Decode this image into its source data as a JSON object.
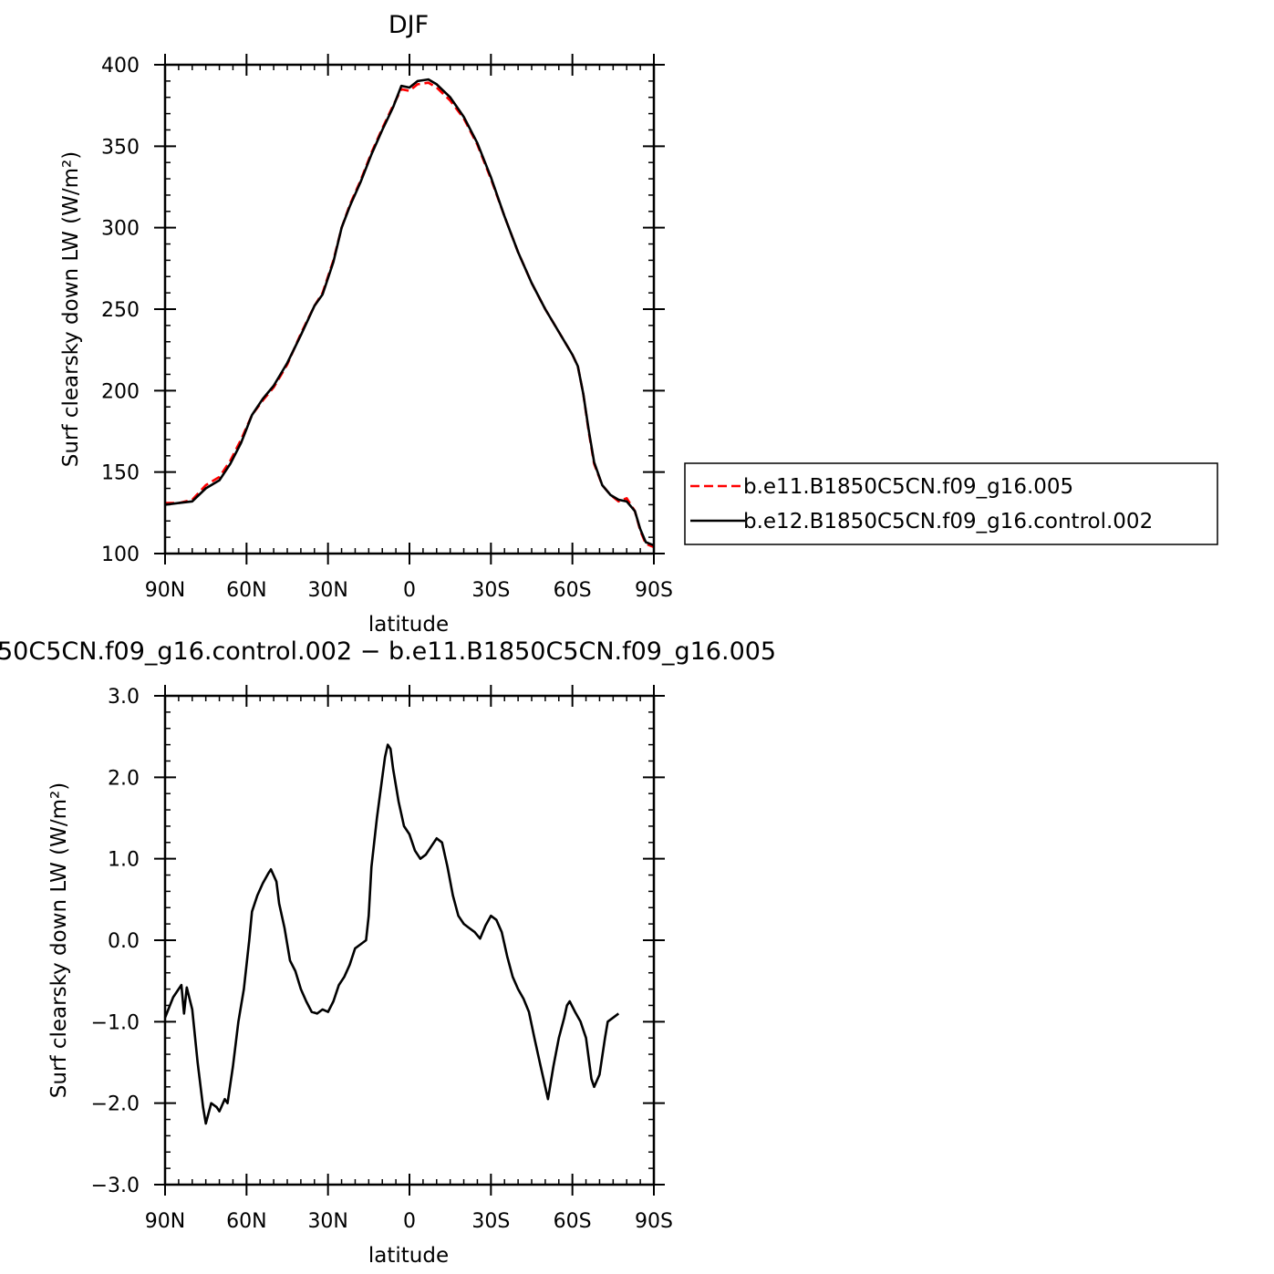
{
  "chart_data": [
    {
      "type": "line",
      "title": "DJF",
      "xlabel": "latitude",
      "ylabel": "Surf clearsky down LW (W/m²)",
      "xlim": [
        -90,
        90
      ],
      "ylim": [
        100,
        400
      ],
      "xticks": [
        {
          "value": -90,
          "label": "90N"
        },
        {
          "value": -60,
          "label": "60N"
        },
        {
          "value": -30,
          "label": "30N"
        },
        {
          "value": 0,
          "label": "0"
        },
        {
          "value": 30,
          "label": "30S"
        },
        {
          "value": 60,
          "label": "60S"
        },
        {
          "value": 90,
          "label": "90S"
        }
      ],
      "yticks": [
        {
          "value": 100,
          "label": "100"
        },
        {
          "value": 150,
          "label": "150"
        },
        {
          "value": 200,
          "label": "200"
        },
        {
          "value": 250,
          "label": "250"
        },
        {
          "value": 300,
          "label": "300"
        },
        {
          "value": 350,
          "label": "350"
        },
        {
          "value": 400,
          "label": "400"
        }
      ],
      "legend_position": "right",
      "series": [
        {
          "name": "b.e11.B1850C5CN.f09_g16.005",
          "color": "#ff0000",
          "dash": "dashed",
          "points": [
            [
              -90,
              131
            ],
            [
              -85,
              131
            ],
            [
              -80,
              133
            ],
            [
              -75,
              142
            ],
            [
              -70,
              147
            ],
            [
              -66,
              157
            ],
            [
              -62,
              170
            ],
            [
              -58,
              185
            ],
            [
              -54,
              194
            ],
            [
              -50,
              202
            ],
            [
              -45,
              216
            ],
            [
              -40,
              235
            ],
            [
              -35,
              252
            ],
            [
              -32,
              260
            ],
            [
              -28,
              280
            ],
            [
              -25,
              300
            ],
            [
              -22,
              314
            ],
            [
              -18,
              329
            ],
            [
              -14,
              346
            ],
            [
              -10,
              361
            ],
            [
              -6,
              375
            ],
            [
              -3,
              385
            ],
            [
              0,
              384
            ],
            [
              3,
              388
            ],
            [
              7,
              389
            ],
            [
              10,
              386
            ],
            [
              15,
              378
            ],
            [
              20,
              367
            ],
            [
              25,
              351
            ],
            [
              30,
              330
            ],
            [
              35,
              307
            ],
            [
              40,
              285
            ],
            [
              45,
              266
            ],
            [
              50,
              250
            ],
            [
              55,
              236
            ],
            [
              60,
              222
            ],
            [
              62,
              215
            ],
            [
              64,
              198
            ],
            [
              66,
              175
            ],
            [
              68,
              155
            ],
            [
              71,
              142
            ],
            [
              74,
              136
            ],
            [
              77,
              132
            ],
            [
              80,
              134
            ],
            [
              83,
              126
            ],
            [
              85,
              114
            ],
            [
              87,
              106
            ],
            [
              90,
              104
            ]
          ]
        },
        {
          "name": "b.e12.B1850C5CN.f09_g16.control.002",
          "color": "#000000",
          "dash": "solid",
          "points": [
            [
              -90,
              130
            ],
            [
              -85,
              131
            ],
            [
              -80,
              132
            ],
            [
              -75,
              140
            ],
            [
              -70,
              145
            ],
            [
              -66,
              155
            ],
            [
              -62,
              168
            ],
            [
              -58,
              185
            ],
            [
              -54,
              195
            ],
            [
              -50,
              203
            ],
            [
              -45,
              217
            ],
            [
              -40,
              234
            ],
            [
              -35,
              252
            ],
            [
              -32,
              259
            ],
            [
              -28,
              279
            ],
            [
              -25,
              300
            ],
            [
              -22,
              313
            ],
            [
              -18,
              328
            ],
            [
              -14,
              345
            ],
            [
              -10,
              360
            ],
            [
              -6,
              374
            ],
            [
              -3,
              387
            ],
            [
              0,
              386
            ],
            [
              3,
              390
            ],
            [
              7,
              391
            ],
            [
              10,
              388
            ],
            [
              15,
              380
            ],
            [
              20,
              368
            ],
            [
              25,
              352
            ],
            [
              30,
              331
            ],
            [
              35,
              307
            ],
            [
              40,
              285
            ],
            [
              45,
              266
            ],
            [
              50,
              250
            ],
            [
              55,
              236
            ],
            [
              60,
              222
            ],
            [
              62,
              215
            ],
            [
              64,
              198
            ],
            [
              66,
              176
            ],
            [
              68,
              156
            ],
            [
              71,
              142
            ],
            [
              74,
              136
            ],
            [
              77,
              133
            ],
            [
              80,
              132
            ],
            [
              83,
              126
            ],
            [
              85,
              115
            ],
            [
              87,
              107
            ],
            [
              90,
              105
            ]
          ]
        }
      ]
    },
    {
      "type": "line",
      "title": "50C5CN.f09_g16.control.002 − b.e11.B1850C5CN.f09_g16.005",
      "xlabel": "latitude",
      "ylabel": "Surf clearsky down LW (W/m²)",
      "xlim": [
        -90,
        90
      ],
      "ylim": [
        -3,
        3
      ],
      "xticks": [
        {
          "value": -90,
          "label": "90N"
        },
        {
          "value": -60,
          "label": "60N"
        },
        {
          "value": -30,
          "label": "30N"
        },
        {
          "value": 0,
          "label": "0"
        },
        {
          "value": 30,
          "label": "30S"
        },
        {
          "value": 60,
          "label": "60S"
        },
        {
          "value": 90,
          "label": "90S"
        }
      ],
      "yticks": [
        {
          "value": -3,
          "label": "−3.0"
        },
        {
          "value": -2,
          "label": "−2.0"
        },
        {
          "value": -1,
          "label": "−1.0"
        },
        {
          "value": 0,
          "label": "0.0"
        },
        {
          "value": 1,
          "label": "1.0"
        },
        {
          "value": 2,
          "label": "2.0"
        },
        {
          "value": 3,
          "label": "3.0"
        }
      ],
      "series": [
        {
          "color": "#000000",
          "dash": "solid",
          "points": [
            [
              -90,
              -0.95
            ],
            [
              -87,
              -0.7
            ],
            [
              -84,
              -0.55
            ],
            [
              -83,
              -0.9
            ],
            [
              -82,
              -0.58
            ],
            [
              -80,
              -0.85
            ],
            [
              -78,
              -1.5
            ],
            [
              -76,
              -2.05
            ],
            [
              -75,
              -2.25
            ],
            [
              -73,
              -2.0
            ],
            [
              -71,
              -2.05
            ],
            [
              -70,
              -2.1
            ],
            [
              -68,
              -1.95
            ],
            [
              -67,
              -2.0
            ],
            [
              -65,
              -1.55
            ],
            [
              -63,
              -1.0
            ],
            [
              -61,
              -0.6
            ],
            [
              -59,
              0.0
            ],
            [
              -58,
              0.35
            ],
            [
              -56,
              0.55
            ],
            [
              -54,
              0.7
            ],
            [
              -52,
              0.82
            ],
            [
              -51,
              0.87
            ],
            [
              -49,
              0.72
            ],
            [
              -48,
              0.45
            ],
            [
              -46,
              0.15
            ],
            [
              -44,
              -0.25
            ],
            [
              -42,
              -0.38
            ],
            [
              -40,
              -0.6
            ],
            [
              -38,
              -0.75
            ],
            [
              -36,
              -0.88
            ],
            [
              -34,
              -0.9
            ],
            [
              -32,
              -0.85
            ],
            [
              -30,
              -0.88
            ],
            [
              -28,
              -0.75
            ],
            [
              -26,
              -0.55
            ],
            [
              -24,
              -0.45
            ],
            [
              -22,
              -0.3
            ],
            [
              -20,
              -0.1
            ],
            [
              -18,
              -0.05
            ],
            [
              -16,
              0.0
            ],
            [
              -15,
              0.3
            ],
            [
              -14,
              0.9
            ],
            [
              -12,
              1.5
            ],
            [
              -10,
              2.0
            ],
            [
              -9,
              2.25
            ],
            [
              -8,
              2.4
            ],
            [
              -7,
              2.35
            ],
            [
              -6,
              2.1
            ],
            [
              -4,
              1.7
            ],
            [
              -2,
              1.4
            ],
            [
              0,
              1.3
            ],
            [
              2,
              1.1
            ],
            [
              4,
              1.0
            ],
            [
              6,
              1.05
            ],
            [
              8,
              1.15
            ],
            [
              10,
              1.25
            ],
            [
              12,
              1.2
            ],
            [
              14,
              0.9
            ],
            [
              16,
              0.55
            ],
            [
              18,
              0.3
            ],
            [
              20,
              0.2
            ],
            [
              22,
              0.15
            ],
            [
              24,
              0.1
            ],
            [
              26,
              0.02
            ],
            [
              28,
              0.18
            ],
            [
              30,
              0.3
            ],
            [
              32,
              0.25
            ],
            [
              34,
              0.1
            ],
            [
              36,
              -0.2
            ],
            [
              38,
              -0.45
            ],
            [
              40,
              -0.6
            ],
            [
              42,
              -0.72
            ],
            [
              44,
              -0.88
            ],
            [
              46,
              -1.2
            ],
            [
              48,
              -1.5
            ],
            [
              50,
              -1.8
            ],
            [
              51,
              -1.95
            ],
            [
              53,
              -1.55
            ],
            [
              55,
              -1.2
            ],
            [
              57,
              -0.95
            ],
            [
              58,
              -0.8
            ],
            [
              59,
              -0.75
            ],
            [
              61,
              -0.88
            ],
            [
              63,
              -1.0
            ],
            [
              65,
              -1.2
            ],
            [
              67,
              -1.7
            ],
            [
              68,
              -1.8
            ],
            [
              70,
              -1.65
            ],
            [
              72,
              -1.2
            ],
            [
              73,
              -1.0
            ],
            [
              75,
              -0.95
            ],
            [
              77,
              -0.9
            ]
          ]
        }
      ]
    }
  ],
  "legend_title": ""
}
